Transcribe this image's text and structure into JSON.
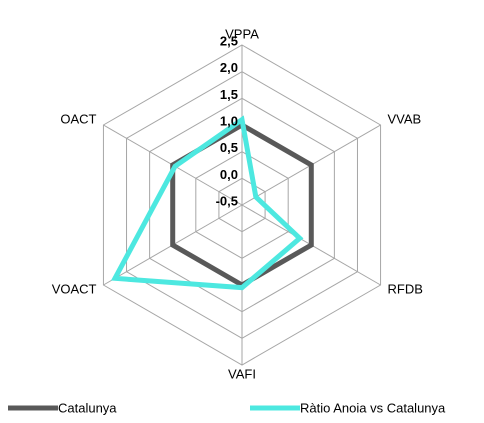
{
  "chart_data": {
    "type": "radar",
    "categories": [
      "VPPA",
      "VVAB",
      "RFDB",
      "VAFI",
      "VOACT",
      "OACT"
    ],
    "rlim": [
      -0.5,
      2.5
    ],
    "rticks": [
      {
        "value": -0.5,
        "label": "-0,5"
      },
      {
        "value": 0,
        "label": "0,0"
      },
      {
        "value": 0.5,
        "label": "0,5"
      },
      {
        "value": 1,
        "label": "1,0"
      },
      {
        "value": 1.5,
        "label": "1,5"
      },
      {
        "value": 2,
        "label": "2,0"
      },
      {
        "value": 2.5,
        "label": "2,5"
      }
    ],
    "grid": true,
    "legend": "bottom",
    "series": [
      {
        "name": "Catalunya",
        "color": "#595959",
        "values": [
          1,
          1,
          1,
          1,
          1,
          1
        ]
      },
      {
        "name": "Ràtio Anoia vs Catalunya",
        "color": "#4de8e0",
        "values": [
          1.1,
          -0.2,
          0.75,
          1.05,
          2.25,
          0.95
        ]
      }
    ]
  }
}
